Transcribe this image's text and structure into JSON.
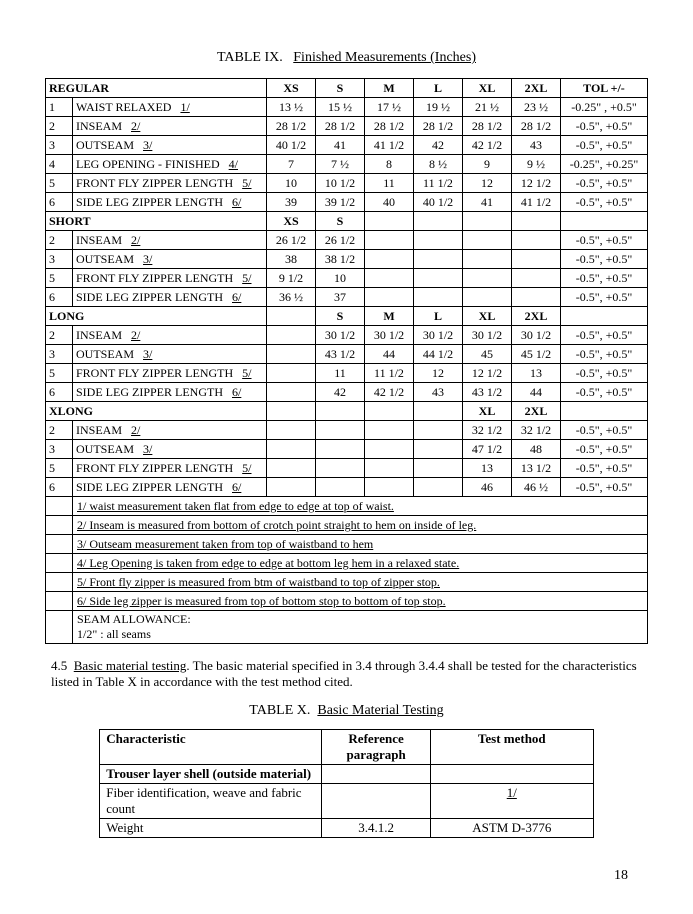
{
  "title_prefix": "TABLE IX.",
  "title_underline": "Finished Measurements (Inches)",
  "cols": {
    "xs": "XS",
    "s": "S",
    "m": "M",
    "l": "L",
    "xl": "XL",
    "xxl": "2XL",
    "tol": "TOL +/-"
  },
  "sections": {
    "regular": {
      "name": "REGULAR",
      "rows": [
        {
          "n": "1",
          "label": "WAIST RELAXED",
          "note": "1/",
          "vals": [
            "13 ½",
            "15 ½",
            "17 ½",
            "19 ½",
            "21 ½",
            "23 ½"
          ],
          "tol": "-0.25\" , +0.5\""
        },
        {
          "n": "2",
          "label": "INSEAM",
          "note": "2/",
          "vals": [
            "28 1/2",
            "28 1/2",
            "28 1/2",
            "28 1/2",
            "28 1/2",
            "28 1/2"
          ],
          "tol": "-0.5\", +0.5\""
        },
        {
          "n": "3",
          "label": "OUTSEAM",
          "note": "3/",
          "vals": [
            "40 1/2",
            "41",
            "41 1/2",
            "42",
            "42 1/2",
            "43"
          ],
          "tol": "-0.5\", +0.5\""
        },
        {
          "n": "4",
          "label": "LEG OPENING  - FINISHED",
          "note": "4/",
          "vals": [
            "7",
            "7 ½",
            "8",
            "8 ½",
            "9",
            "9 ½"
          ],
          "tol": "-0.25\", +0.25\""
        },
        {
          "n": "5",
          "label": "FRONT FLY ZIPPER LENGTH",
          "note": "5/",
          "vals": [
            "10",
            "10 1/2",
            "11",
            "11 1/2",
            "12",
            "12 1/2"
          ],
          "tol": "-0.5\", +0.5\""
        },
        {
          "n": "6",
          "label": "SIDE LEG ZIPPER LENGTH",
          "note": "6/",
          "vals": [
            "39",
            "39 1/2",
            "40",
            "40 1/2",
            "41",
            "41 1/2"
          ],
          "tol": "-0.5\", +0.5\""
        }
      ]
    },
    "short": {
      "name": "SHORT",
      "rows": [
        {
          "n": "2",
          "label": "INSEAM",
          "note": "2/",
          "vals": [
            "26 1/2",
            "26 1/2",
            "",
            "",
            "",
            ""
          ],
          "tol": "-0.5\", +0.5\""
        },
        {
          "n": "3",
          "label": "OUTSEAM",
          "note": "3/",
          "vals": [
            "38",
            "38 1/2",
            "",
            "",
            "",
            ""
          ],
          "tol": "-0.5\", +0.5\""
        },
        {
          "n": "5",
          "label": "FRONT FLY ZIPPER LENGTH",
          "note": "5/",
          "vals": [
            "9 1/2",
            "10",
            "",
            "",
            "",
            ""
          ],
          "tol": "-0.5\", +0.5\""
        },
        {
          "n": "6",
          "label": "SIDE LEG ZIPPER LENGTH",
          "note": "6/",
          "vals": [
            "36 ½",
            "37",
            "",
            "",
            "",
            ""
          ],
          "tol": "-0.5\", +0.5\""
        }
      ]
    },
    "long": {
      "name": "LONG",
      "rows": [
        {
          "n": "2",
          "label": "INSEAM",
          "note": "2/",
          "vals": [
            "",
            "30 1/2",
            "30 1/2",
            "30 1/2",
            "30 1/2",
            "30 1/2"
          ],
          "tol": "-0.5\", +0.5\""
        },
        {
          "n": "3",
          "label": "OUTSEAM",
          "note": "3/",
          "vals": [
            "",
            "43 1/2",
            "44",
            "44 1/2",
            "45",
            "45 1/2"
          ],
          "tol": "-0.5\", +0.5\""
        },
        {
          "n": "5",
          "label": "FRONT FLY ZIPPER LENGTH",
          "note": "5/",
          "vals": [
            "",
            "11",
            "11 1/2",
            "12",
            "12 1/2",
            "13"
          ],
          "tol": "-0.5\", +0.5\""
        },
        {
          "n": "6",
          "label": "SIDE LEG ZIPPER LENGTH",
          "note": "6/",
          "vals": [
            "",
            "42",
            "42 1/2",
            "43",
            "43 1/2",
            "44"
          ],
          "tol": "-0.5\", +0.5\""
        }
      ]
    },
    "xlong": {
      "name": "XLONG",
      "rows": [
        {
          "n": "2",
          "label": "INSEAM",
          "note": "2/",
          "vals": [
            "",
            "",
            "",
            "",
            "32 1/2",
            "32 1/2"
          ],
          "tol": "-0.5\", +0.5\""
        },
        {
          "n": "3",
          "label": "OUTSEAM",
          "note": "3/",
          "vals": [
            "",
            "",
            "",
            "",
            "47 1/2",
            "48"
          ],
          "tol": "-0.5\", +0.5\""
        },
        {
          "n": "5",
          "label": "FRONT FLY ZIPPER LENGTH",
          "note": "5/",
          "vals": [
            "",
            "",
            "",
            "",
            "13",
            "13 1/2"
          ],
          "tol": "-0.5\", +0.5\""
        },
        {
          "n": "6",
          "label": "SIDE LEG ZIPPER LENGTH",
          "note": "6/",
          "vals": [
            "",
            "",
            "",
            "",
            "46",
            "46 ½"
          ],
          "tol": "-0.5\", +0.5\""
        }
      ]
    }
  },
  "notes": [
    "1/ waist measurement taken flat from edge to edge at top of waist.",
    "2/ Inseam is measured from bottom of crotch point straight to hem on inside of leg.",
    "3/ Outseam measurement taken from  top of  waistband to hem",
    "4/ Leg Opening is taken from edge to edge at bottom leg hem in a relaxed state.",
    "5/ Front fly zipper is measured from btm of waistband to top of zipper stop.",
    "6/ Side leg zipper is measured from top of bottom stop to bottom of top stop."
  ],
  "seam_allowance_label": "SEAM ALLOWANCE:",
  "seam_allowance_value": "1/2\" : all seams",
  "para_lead": "4.5",
  "para_ul": "Basic material testing",
  "para_text": ".  The basic material specified in 3.4 through 3.4.4 shall be tested for the characteristics listed in Table X in accordance with the test method cited.",
  "title2_prefix": "TABLE X.",
  "title2_underline": "Basic Material Testing",
  "test_table": {
    "headers": [
      "Characteristic",
      "Reference paragraph",
      "Test method"
    ],
    "rows": [
      {
        "c1": "Trouser layer shell (outside material)",
        "bold": true,
        "c2": "",
        "c3": ""
      },
      {
        "c1": "Fiber identification, weave and fabric count",
        "c2": "",
        "c3": "1/",
        "c3_ul": true
      },
      {
        "c1": "Weight",
        "c2": "3.4.1.2",
        "c3": "ASTM D-3776"
      }
    ]
  },
  "page_number": "18"
}
